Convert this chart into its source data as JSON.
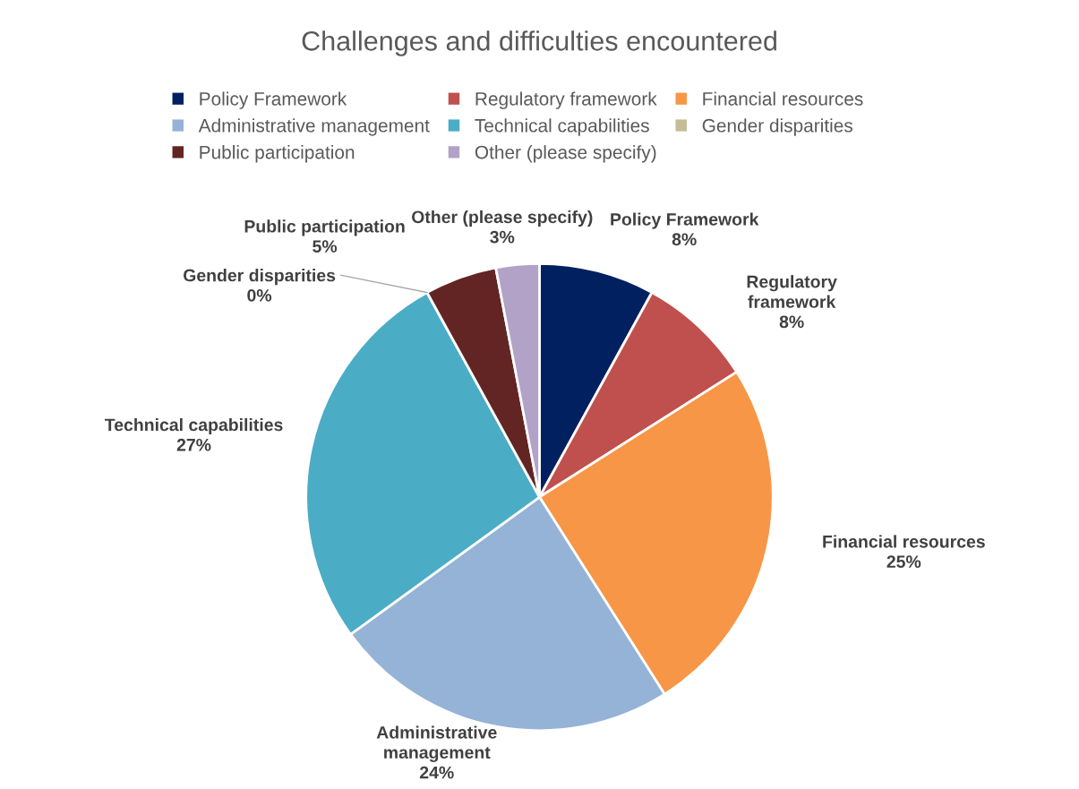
{
  "chart_data": {
    "type": "pie",
    "title": "Challenges and difficulties encountered",
    "categories": [
      "Policy Framework",
      "Regulatory framework",
      "Financial resources",
      "Administrative management",
      "Technical capabilities",
      "Gender disparities",
      "Public participation",
      "Other (please specify)"
    ],
    "values": [
      8,
      8,
      25,
      24,
      27,
      0,
      5,
      3
    ],
    "value_labels": [
      "8%",
      "8%",
      "25%",
      "24%",
      "27%",
      "0%",
      "5%",
      "3%"
    ],
    "colors": [
      "#002060",
      "#c0504d",
      "#f79646",
      "#95b3d7",
      "#4bacc6",
      "#c4bd97",
      "#632523",
      "#b2a2c7"
    ],
    "legend": "top"
  }
}
